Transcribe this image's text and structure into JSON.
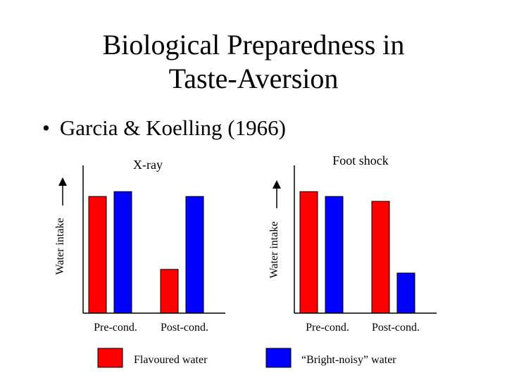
{
  "slide": {
    "title_line1": "Biological Preparedness in",
    "title_line2": "Taste-Aversion",
    "bullet_symbol": "•",
    "bullet_text": "Garcia & Koelling (1966)"
  },
  "colors": {
    "flavoured": "#ff0000",
    "bright_noisy": "#0000ff",
    "axis": "#000000"
  },
  "legend": [
    {
      "label": "Flavoured water",
      "color": "#ff0000"
    },
    {
      "label": "“Bright-noisy” water",
      "color": "#0000ff"
    }
  ],
  "chart_data": [
    {
      "type": "bar",
      "title": "X-ray",
      "ylabel": "Water intake",
      "categories": [
        "Pre-cond.",
        "Post-cond."
      ],
      "series": [
        {
          "name": "Flavoured water",
          "values": [
            0.96,
            0.36
          ]
        },
        {
          "name": "“Bright-noisy” water",
          "values": [
            1.0,
            0.96
          ]
        }
      ],
      "ylim": [
        0,
        1.1
      ],
      "grid": false
    },
    {
      "type": "bar",
      "title": "Foot shock",
      "ylabel": "Water intake",
      "categories": [
        "Pre-cond.",
        "Post-cond."
      ],
      "series": [
        {
          "name": "Flavoured water",
          "values": [
            1.0,
            0.92
          ]
        },
        {
          "name": "“Bright-noisy” water",
          "values": [
            0.96,
            0.33
          ]
        }
      ],
      "ylim": [
        0,
        1.1
      ],
      "grid": false
    }
  ]
}
